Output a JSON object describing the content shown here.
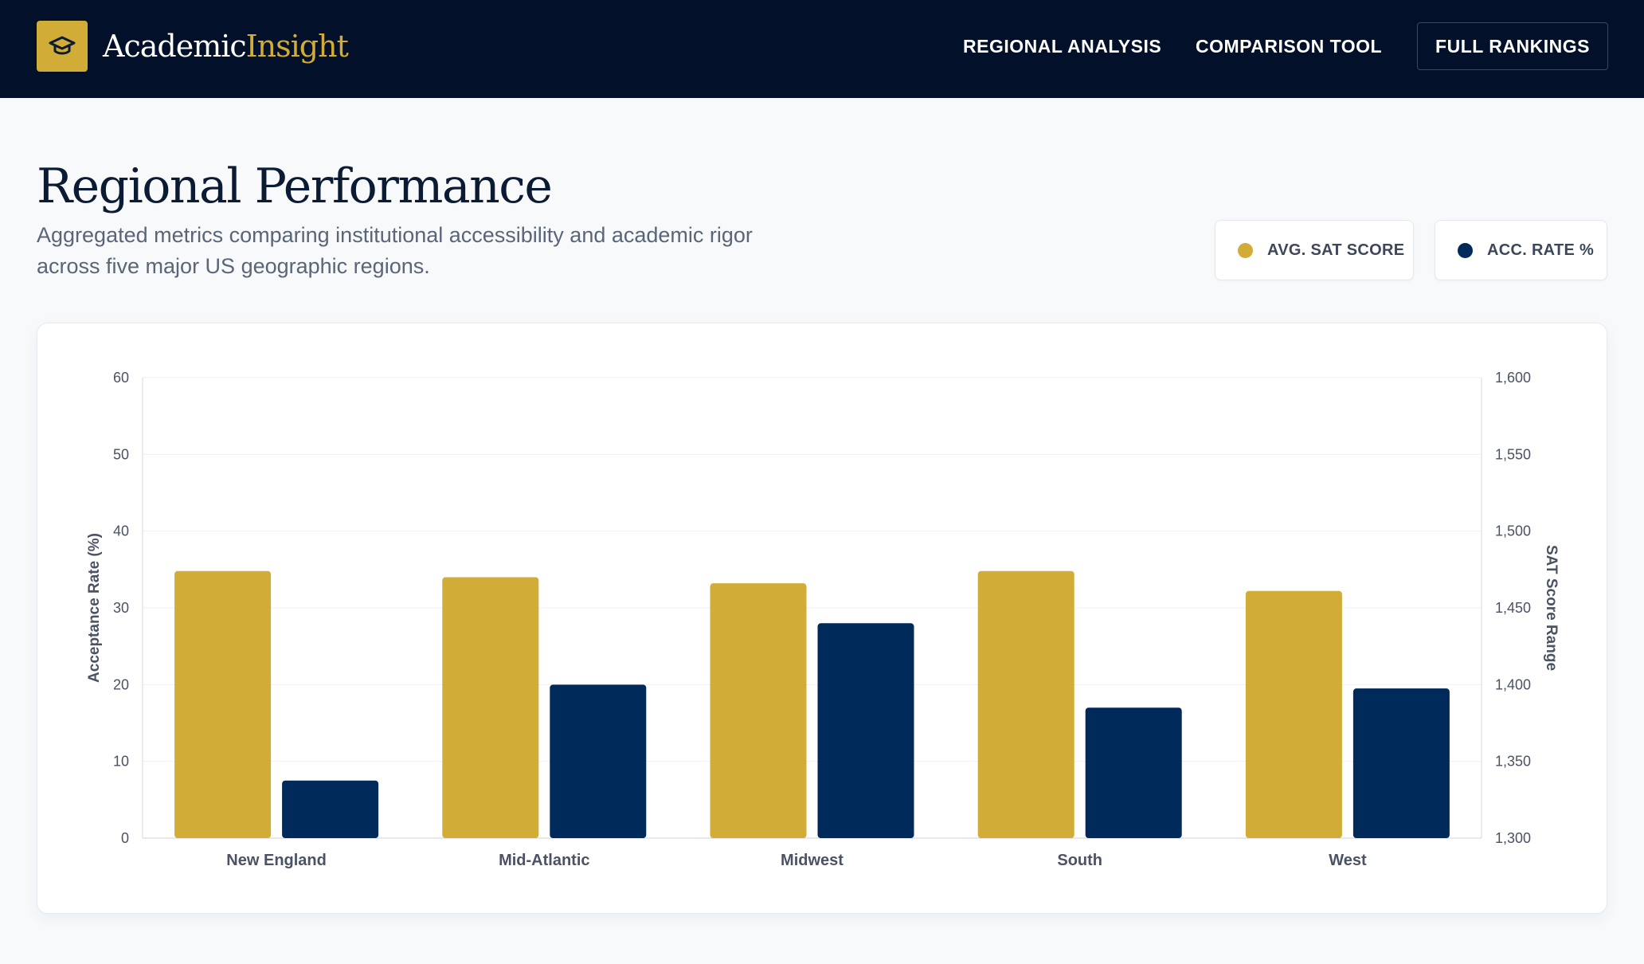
{
  "header": {
    "brand_part1": "Academic",
    "brand_part2": "Insight",
    "logo_icon": "graduation-cap-icon",
    "nav": {
      "regional_analysis": "REGIONAL ANALYSIS",
      "comparison_tool": "COMPARISON TOOL",
      "full_rankings": "FULL RANKINGS"
    }
  },
  "main": {
    "title": "Regional Performance",
    "subtitle_line1": "Aggregated metrics comparing institutional accessibility and academic rigor",
    "subtitle_line2": "across five major US geographic regions.",
    "legend": {
      "sat": "AVG. SAT SCORE",
      "acc": "ACC. RATE %"
    }
  },
  "colors": {
    "navy": "#021129",
    "gold": "#d1ad38",
    "series_sat": "#d1ad38",
    "series_acc": "#002a5a"
  },
  "chart_data": {
    "type": "bar",
    "categories": [
      "New England",
      "Mid-Atlantic",
      "Midwest",
      "South",
      "West"
    ],
    "series": [
      {
        "name": "AVG. SAT SCORE",
        "axis": "right",
        "values": [
          1474,
          1470,
          1466,
          1474,
          1461
        ]
      },
      {
        "name": "ACC. RATE %",
        "axis": "left",
        "values": [
          7.5,
          20,
          28,
          17,
          19.5
        ]
      }
    ],
    "ylabel": "Acceptance Rate (%)",
    "y2label": "SAT Score Range",
    "ylim": [
      0,
      60
    ],
    "y2lim": [
      1300,
      1600
    ],
    "yticks": [
      "0",
      "10",
      "20",
      "30",
      "40",
      "50",
      "60"
    ],
    "y2ticks": [
      "1,300",
      "1,350",
      "1,400",
      "1,450",
      "1,500",
      "1,550",
      "1,600"
    ],
    "grid": true
  }
}
